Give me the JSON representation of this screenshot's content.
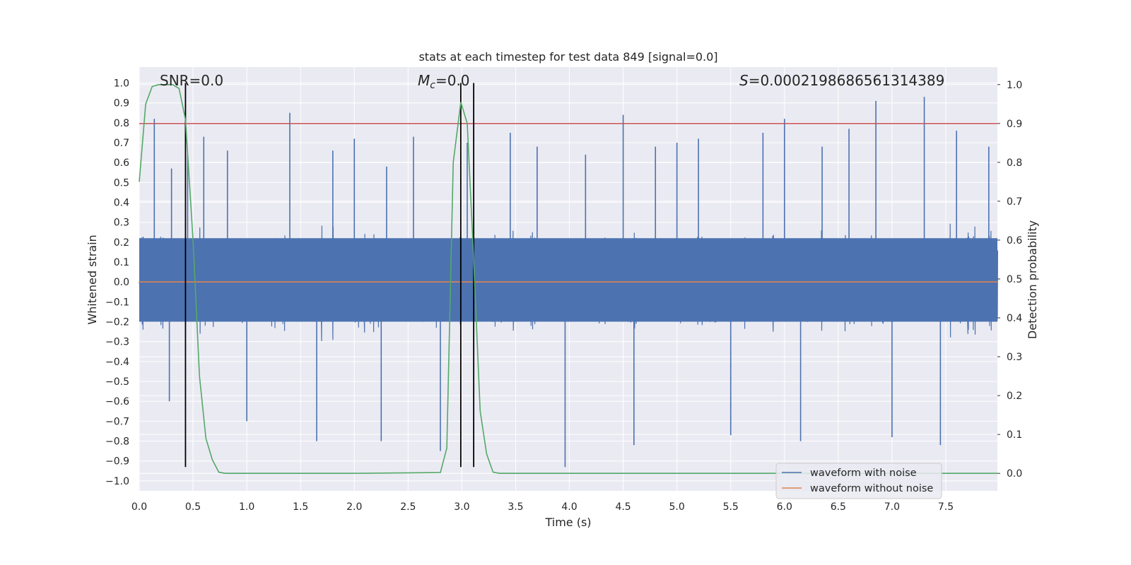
{
  "chart_data": {
    "type": "line",
    "title": "stats at each timestep for test data 849 [signal=0.0]",
    "xlabel": "Time (s)",
    "ylabel": "Whitened strain",
    "y2label": "Detection probability",
    "xlim": [
      0.0,
      7.98
    ],
    "ylim": [
      -1.05,
      1.08
    ],
    "y2lim": [
      -0.045,
      1.045
    ],
    "x_ticks": [
      "0.0",
      "0.5",
      "1.0",
      "1.5",
      "2.0",
      "2.5",
      "3.0",
      "3.5",
      "4.0",
      "4.5",
      "5.0",
      "5.5",
      "6.0",
      "6.5",
      "7.0",
      "7.5"
    ],
    "y_ticks": [
      "1.0",
      "0.9",
      "0.8",
      "0.7",
      "0.6",
      "0.5",
      "0.4",
      "0.3",
      "0.2",
      "0.1",
      "0.0",
      "-0.1",
      "-0.2",
      "-0.3",
      "-0.4",
      "-0.5",
      "-0.6",
      "-0.7",
      "-0.8",
      "-0.9",
      "-1.0"
    ],
    "y2_ticks": [
      "1.0",
      "0.9",
      "0.8",
      "0.7",
      "0.6",
      "0.5",
      "0.4",
      "0.3",
      "0.2",
      "0.1",
      "0.0"
    ],
    "grid": true,
    "legend_position": "bottom-right",
    "annotations": {
      "snr": "SNR=0.0",
      "mc_symbol": "M",
      "mc_sub": "c",
      "mc_value": "=0.0",
      "s_symbol": "S",
      "s_value": "=0.0002198686561314389"
    },
    "series": [
      {
        "name": "waveform with noise",
        "color": "#4c72b0",
        "axis": "left",
        "description_values": "dense noise band, core roughly -0.4 to 0.4, peaks to about 0.93 and troughs to about -0.93",
        "spikes": [
          [
            0.14,
            0.82
          ],
          [
            0.28,
            -0.6
          ],
          [
            0.3,
            0.57
          ],
          [
            0.45,
            0.64
          ],
          [
            0.6,
            0.73
          ],
          [
            0.82,
            0.66
          ],
          [
            1.0,
            -0.7
          ],
          [
            1.4,
            0.85
          ],
          [
            1.65,
            -0.8
          ],
          [
            1.8,
            0.66
          ],
          [
            2.0,
            0.72
          ],
          [
            2.25,
            -0.8
          ],
          [
            2.3,
            0.58
          ],
          [
            2.55,
            0.73
          ],
          [
            2.8,
            -0.85
          ],
          [
            3.05,
            0.7
          ],
          [
            3.45,
            0.75
          ],
          [
            3.7,
            0.68
          ],
          [
            3.96,
            -0.93
          ],
          [
            4.15,
            0.64
          ],
          [
            4.5,
            0.84
          ],
          [
            4.6,
            -0.82
          ],
          [
            4.8,
            0.68
          ],
          [
            5.0,
            0.7
          ],
          [
            5.2,
            0.72
          ],
          [
            5.5,
            -0.77
          ],
          [
            5.8,
            0.75
          ],
          [
            6.0,
            0.82
          ],
          [
            6.15,
            -0.8
          ],
          [
            6.35,
            0.68
          ],
          [
            6.6,
            0.77
          ],
          [
            6.85,
            0.91
          ],
          [
            7.0,
            -0.78
          ],
          [
            7.3,
            0.93
          ],
          [
            7.45,
            -0.82
          ],
          [
            7.6,
            0.76
          ],
          [
            7.9,
            0.68
          ]
        ]
      },
      {
        "name": "waveform without noise",
        "color": "#dd8452",
        "axis": "left",
        "x": [
          0.0,
          7.98
        ],
        "y": [
          0.0,
          0.0
        ]
      },
      {
        "name": "detection probability",
        "color": "#55a868",
        "axis": "right",
        "x": [
          0.0,
          0.06,
          0.12,
          0.18,
          0.25,
          0.31,
          0.37,
          0.43,
          0.5,
          0.56,
          0.62,
          0.68,
          0.74,
          0.8,
          1.0,
          2.0,
          2.8,
          2.86,
          2.92,
          2.99,
          3.05,
          3.11,
          3.17,
          3.23,
          3.29,
          3.35,
          3.42,
          3.5,
          7.98
        ],
        "y": [
          0.75,
          0.95,
          0.995,
          1.0,
          1.0,
          1.0,
          0.99,
          0.91,
          0.6,
          0.25,
          0.09,
          0.035,
          0.003,
          0.0,
          0.0,
          0.0,
          0.002,
          0.065,
          0.8,
          0.955,
          0.9,
          0.55,
          0.16,
          0.05,
          0.003,
          0.0,
          0.0,
          0.0,
          0.0
        ]
      }
    ],
    "threshold_line": {
      "y": 0.9,
      "axis": "right",
      "color": "#c44e52"
    },
    "vertical_lines": [
      {
        "x": 0.43,
        "ymin": -0.93,
        "ymax": 1.0
      },
      {
        "x": 2.99,
        "ymin": -0.93,
        "ymax": 1.0
      },
      {
        "x": 3.11,
        "ymin": -0.93,
        "ymax": 1.0
      }
    ]
  }
}
